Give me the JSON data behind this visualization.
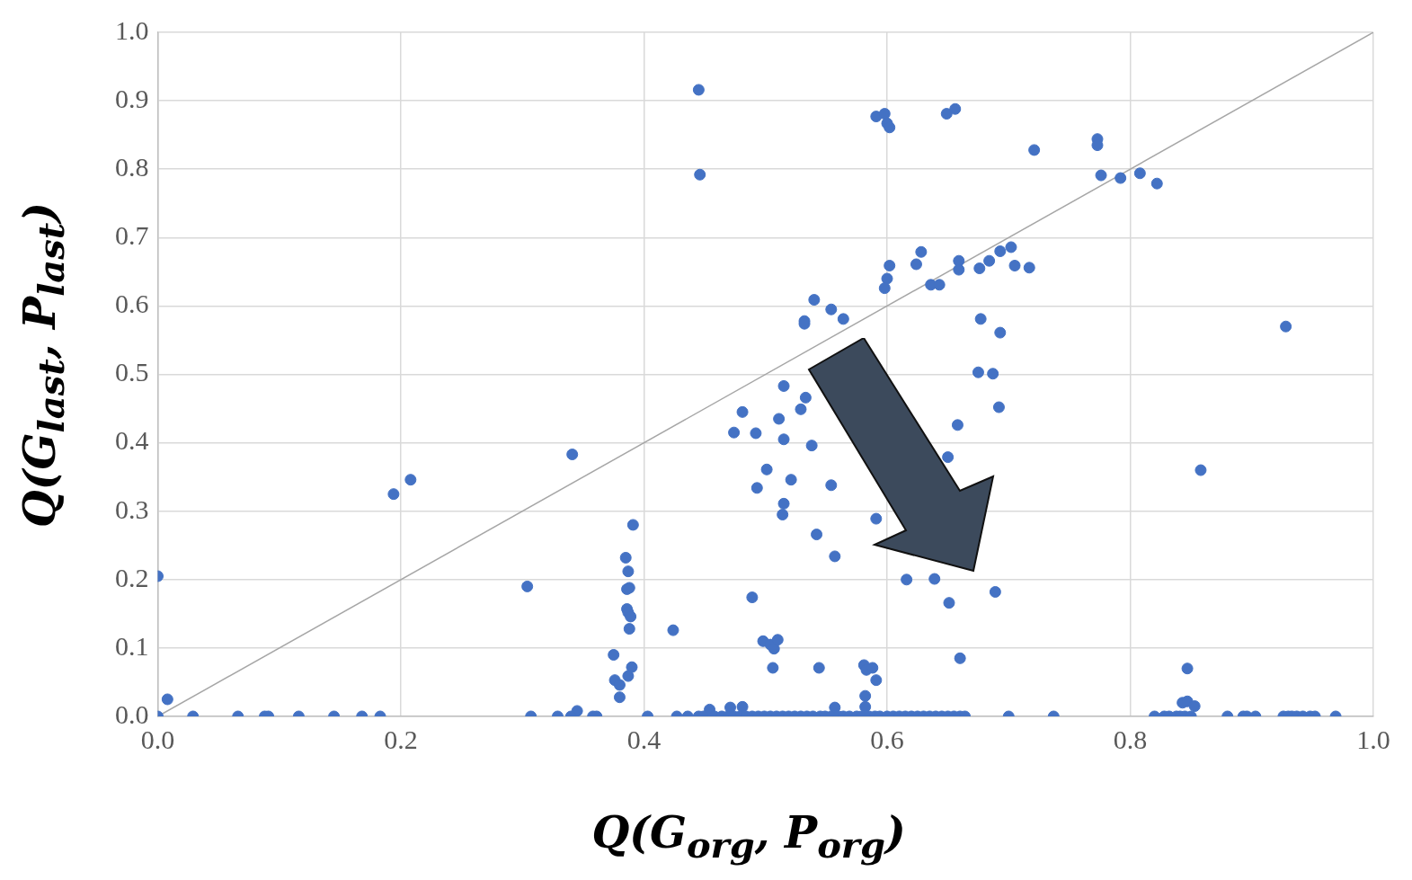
{
  "chart_data": {
    "type": "scatter",
    "xlabel": "Q(G$_{org}$, P$_{org}$)",
    "ylabel": "Q(G$_{last}$, P$_{last}$)",
    "xlim": [
      0,
      1
    ],
    "ylim": [
      0,
      1
    ],
    "xticks": [
      {
        "value": 0,
        "label": "0.0"
      },
      {
        "value": 0.2,
        "label": "0.2"
      },
      {
        "value": 0.4,
        "label": "0.4"
      },
      {
        "value": 0.6,
        "label": "0.6"
      },
      {
        "value": 0.8,
        "label": "0.8"
      },
      {
        "value": 1,
        "label": "1.0"
      }
    ],
    "yticks": [
      {
        "value": 0,
        "label": "0.0"
      },
      {
        "value": 0.1,
        "label": "0.1"
      },
      {
        "value": 0.2,
        "label": "0.2"
      },
      {
        "value": 0.3,
        "label": "0.3"
      },
      {
        "value": 0.4,
        "label": "0.4"
      },
      {
        "value": 0.5,
        "label": "0.5"
      },
      {
        "value": 0.6,
        "label": "0.6"
      },
      {
        "value": 0.7,
        "label": "0.7"
      },
      {
        "value": 0.8,
        "label": "0.8"
      },
      {
        "value": 0.9,
        "label": "0.9"
      },
      {
        "value": 1,
        "label": "1.0"
      }
    ],
    "grid": true,
    "marker": "circle",
    "series": [
      {
        "type": "scatter",
        "color": "#4472c4",
        "x": [
          0,
          0.008,
          0.194,
          0.208,
          0.304,
          0.341,
          0.345,
          0.376,
          0.375,
          0.38,
          0.38,
          0.385,
          0.387,
          0.386,
          0.388,
          0.386,
          0.387,
          0.389,
          0.388,
          0.387,
          0.39,
          0.391,
          0.424,
          0.445,
          0.446,
          0.454,
          0.471,
          0.481,
          0.474,
          0.481,
          0.489,
          0.492,
          0.493,
          0.501,
          0.498,
          0.504,
          0.507,
          0.51,
          0.506,
          0.511,
          0.515,
          0.515,
          0.515,
          0.514,
          0.521,
          0.529,
          0.533,
          0.532,
          0.532,
          0.538,
          0.54,
          0.542,
          0.544,
          0.554,
          0.554,
          0.557,
          0.564,
          0.557,
          0.581,
          0.583,
          0.582,
          0.588,
          0.591,
          0.582,
          0.591,
          0.591,
          0.598,
          0.6,
          0.602,
          0.6,
          0.598,
          0.602,
          0.616,
          0.639,
          0.651,
          0.689,
          0.66,
          0.658,
          0.65,
          0.692,
          0.675,
          0.687,
          0.677,
          0.693,
          0.636,
          0.643,
          0.628,
          0.624,
          0.659,
          0.659,
          0.649,
          0.656,
          0.721,
          0.773,
          0.773,
          0.776,
          0.792,
          0.808,
          0.822,
          0.676,
          0.684,
          0.693,
          0.702,
          0.705,
          0.717,
          0.928,
          0.858,
          0.847,
          0.843,
          0.847,
          0.853,
          0,
          0.029,
          0.066,
          0.088,
          0.091,
          0.116,
          0.145,
          0.168,
          0.183,
          0.307,
          0.329,
          0.34,
          0.358,
          0.361,
          0.403,
          0.427,
          0.436,
          0.445,
          0.449,
          0.458,
          0.464,
          0.469,
          0.474,
          0.479,
          0.484,
          0.489,
          0.494,
          0.499,
          0.504,
          0.509,
          0.514,
          0.519,
          0.524,
          0.529,
          0.534,
          0.539,
          0.545,
          0.549,
          0.554,
          0.56,
          0.564,
          0.569,
          0.575,
          0.579,
          0.585,
          0.59,
          0.594,
          0.6,
          0.605,
          0.61,
          0.615,
          0.62,
          0.625,
          0.63,
          0.635,
          0.64,
          0.645,
          0.65,
          0.655,
          0.66,
          0.664,
          0.7,
          0.737,
          0.82,
          0.828,
          0.832,
          0.838,
          0.841,
          0.845,
          0.85,
          0.88,
          0.893,
          0.896,
          0.903,
          0.926,
          0.93,
          0.933,
          0.937,
          0.942,
          0.948,
          0.952,
          0.969
        ],
        "values": [
          0.205,
          0.025,
          0.325,
          0.346,
          0.19,
          0.383,
          0.008,
          0.053,
          0.09,
          0.028,
          0.046,
          0.232,
          0.212,
          0.186,
          0.188,
          0.157,
          0.152,
          0.146,
          0.128,
          0.059,
          0.072,
          0.28,
          0.126,
          0.916,
          0.792,
          0.01,
          0.013,
          0.014,
          0.415,
          0.445,
          0.174,
          0.414,
          0.334,
          0.361,
          0.11,
          0.105,
          0.099,
          0.112,
          0.071,
          0.435,
          0.405,
          0.483,
          0.311,
          0.295,
          0.346,
          0.449,
          0.466,
          0.578,
          0.574,
          0.396,
          0.609,
          0.266,
          0.071,
          0.595,
          0.338,
          0.234,
          0.581,
          0.013,
          0.075,
          0.068,
          0.03,
          0.071,
          0.053,
          0.014,
          0.289,
          0.877,
          0.881,
          0.867,
          0.861,
          0.64,
          0.626,
          0.659,
          0.2,
          0.201,
          0.166,
          0.182,
          0.085,
          0.426,
          0.379,
          0.452,
          0.503,
          0.501,
          0.581,
          0.561,
          0.631,
          0.631,
          0.679,
          0.661,
          0.666,
          0.653,
          0.881,
          0.888,
          0.828,
          0.844,
          0.835,
          0.791,
          0.787,
          0.794,
          0.779,
          0.655,
          0.666,
          0.68,
          0.686,
          0.659,
          0.656,
          0.57,
          0.36,
          0.07,
          0.02,
          0.022,
          0.015,
          0,
          0,
          0,
          0,
          0,
          0,
          0,
          0,
          0,
          0,
          0,
          0,
          0,
          0,
          0,
          0,
          0,
          0,
          0,
          0,
          0,
          0,
          0,
          0,
          0,
          0,
          0,
          0,
          0,
          0,
          0,
          0,
          0,
          0,
          0,
          0,
          0,
          0,
          0,
          0,
          0,
          0,
          0,
          0,
          0,
          0,
          0,
          0,
          0,
          0,
          0,
          0,
          0,
          0,
          0,
          0,
          0,
          0,
          0,
          0,
          0,
          0,
          0,
          0,
          0,
          0,
          0,
          0,
          0,
          0,
          0,
          0,
          0,
          0,
          0,
          0,
          0,
          0,
          0,
          0,
          0,
          0
        ]
      },
      {
        "type": "line",
        "color": "#a6a6a6",
        "marker": "none",
        "x": [
          0,
          1
        ],
        "values": [
          0,
          1
        ]
      }
    ]
  }
}
